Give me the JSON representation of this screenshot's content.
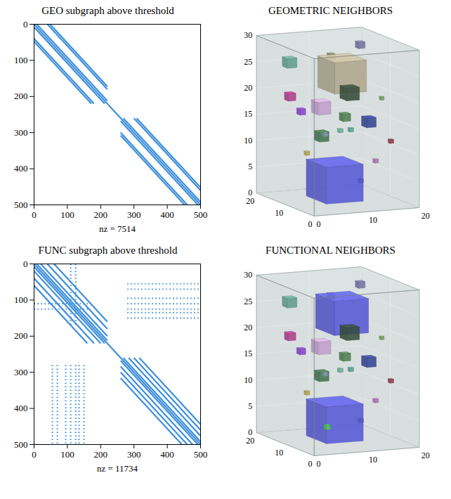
{
  "chart_data": [
    {
      "type": "spy",
      "title": "GEO subgraph above threshold",
      "x_label": "nz = 7514",
      "xlim": [
        0,
        500
      ],
      "ylim": [
        0,
        500
      ],
      "xticks": [
        0,
        100,
        200,
        300,
        400,
        500
      ],
      "yticks": [
        0,
        100,
        200,
        300,
        400,
        500
      ],
      "color": "#3d8fdc",
      "series": [
        {
          "line_style": "solid",
          "segments": [
            [
              0,
              0,
              500,
              500
            ],
            [
              8,
              0,
              220,
              212
            ],
            [
              0,
              8,
              212,
              220
            ],
            [
              40,
              0,
              220,
              180
            ],
            [
              0,
              40,
              180,
              220
            ],
            [
              48,
              0,
              220,
              172
            ],
            [
              0,
              48,
              172,
              220
            ],
            [
              268,
              260,
              500,
              492
            ],
            [
              260,
              268,
              492,
              500
            ],
            [
              300,
              260,
              500,
              460
            ],
            [
              260,
              300,
              460,
              500
            ],
            [
              308,
              260,
              500,
              452
            ],
            [
              260,
              308,
              452,
              500
            ]
          ]
        }
      ]
    },
    {
      "type": "3d",
      "title": "GEOMETRIC NEIGHBORS",
      "xlim": [
        0,
        20
      ],
      "ylim": [
        0,
        20
      ],
      "zlim": [
        0,
        30
      ],
      "xticks": [
        0,
        10,
        20
      ],
      "yticks": [
        0,
        10,
        20
      ],
      "zticks": [
        0,
        5,
        10,
        15,
        20,
        25,
        30
      ],
      "color": "#9aabab",
      "objects": [
        {
          "center": [
            17,
            15,
            28
          ],
          "size": 1.2,
          "color": "#6a6aa8"
        },
        {
          "center": [
            12,
            16,
            26
          ],
          "size": 1.0,
          "color": "#8c7a50"
        },
        {
          "center": [
            13,
            14,
            23
          ],
          "size": 6,
          "color": "#c2b290"
        },
        {
          "center": [
            3,
            14,
            26
          ],
          "size": 1.8,
          "color": "#5aa88e"
        },
        {
          "center": [
            15,
            15,
            19
          ],
          "size": 2.4,
          "color": "#1f3a22"
        },
        {
          "center": [
            2,
            12,
            20
          ],
          "size": 1.4,
          "color": "#c2248e"
        },
        {
          "center": [
            3,
            10,
            17.5
          ],
          "size": 1.1,
          "color": "#8a2be2"
        },
        {
          "center": [
            9,
            14,
            17
          ],
          "size": 2.4,
          "color": "#dba6e6"
        },
        {
          "center": [
            13,
            13,
            15
          ],
          "size": 1.4,
          "color": "#3e7f3e"
        },
        {
          "center": [
            17,
            12,
            14
          ],
          "size": 1.8,
          "color": "#1f2f9a"
        },
        {
          "center": [
            11,
            11,
            13
          ],
          "size": 0.7,
          "color": "#67c0a4"
        },
        {
          "center": [
            13,
            11,
            13
          ],
          "size": 0.7,
          "color": "#4fb0a0"
        },
        {
          "center": [
            8,
            12,
            12
          ],
          "size": 1.8,
          "color": "#2f6e3c"
        },
        {
          "center": [
            7,
            9,
            13
          ],
          "size": 0.7,
          "color": "#8aa0c8"
        },
        {
          "center": [
            3,
            8,
            10
          ],
          "size": 0.7,
          "color": "#c8b040"
        },
        {
          "center": [
            20,
            13,
            18
          ],
          "size": 0.6,
          "color": "#6ab04c"
        },
        {
          "center": [
            19,
            8,
            11
          ],
          "size": 0.7,
          "color": "#a02040"
        },
        {
          "center": [
            15,
            6,
            8
          ],
          "size": 0.7,
          "color": "#c070c0"
        },
        {
          "center": [
            11,
            4,
            5
          ],
          "size": 0.7,
          "color": "#20304a"
        },
        {
          "center": [
            5,
            2,
            6
          ],
          "size": 7,
          "color": "#4a4af0"
        }
      ]
    },
    {
      "type": "spy",
      "title": "FUNC subgraph above threshold",
      "x_label": "nz = 11734",
      "xlim": [
        0,
        500
      ],
      "ylim": [
        0,
        500
      ],
      "xticks": [
        0,
        100,
        200,
        300,
        400,
        500
      ],
      "yticks": [
        0,
        100,
        200,
        300,
        400,
        500
      ],
      "color": "#3d8fdc",
      "series": [
        {
          "line_style": "solid",
          "segments": [
            [
              0,
              0,
              500,
              500
            ],
            [
              8,
              0,
              220,
              212
            ],
            [
              0,
              8,
              212,
              220
            ],
            [
              20,
              0,
              220,
              200
            ],
            [
              0,
              20,
              200,
              220
            ],
            [
              40,
              0,
              220,
              180
            ],
            [
              0,
              40,
              180,
              220
            ],
            [
              60,
              0,
              220,
              160
            ],
            [
              0,
              60,
              160,
              220
            ],
            [
              268,
              260,
              500,
              492
            ],
            [
              260,
              268,
              492,
              500
            ],
            [
              284,
              260,
              500,
              476
            ],
            [
              260,
              284,
              476,
              500
            ],
            [
              300,
              260,
              500,
              460
            ],
            [
              260,
              300,
              460,
              500
            ],
            [
              316,
              260,
              500,
              444
            ],
            [
              260,
              316,
              444,
              500
            ]
          ]
        },
        {
          "line_style": "dotted",
          "segments": [
            [
              280,
              55,
              500,
              55
            ],
            [
              280,
              70,
              500,
              70
            ],
            [
              280,
              95,
              500,
              95
            ],
            [
              280,
              110,
              500,
              110
            ],
            [
              280,
              125,
              500,
              125
            ],
            [
              280,
              135,
              500,
              135
            ],
            [
              280,
              150,
              500,
              150
            ],
            [
              55,
              280,
              55,
              500
            ],
            [
              70,
              280,
              70,
              500
            ],
            [
              95,
              280,
              95,
              500
            ],
            [
              110,
              280,
              110,
              500
            ],
            [
              125,
              280,
              125,
              500
            ],
            [
              135,
              280,
              135,
              500
            ],
            [
              150,
              280,
              150,
              500
            ],
            [
              0,
              110,
              170,
              110
            ],
            [
              0,
              125,
              170,
              125
            ],
            [
              110,
              0,
              110,
              170
            ],
            [
              125,
              0,
              125,
              170
            ]
          ]
        }
      ]
    },
    {
      "type": "3d",
      "title": "FUNCTIONAL NEIGHBORS",
      "xlim": [
        0,
        20
      ],
      "ylim": [
        0,
        20
      ],
      "zlim": [
        0,
        30
      ],
      "xticks": [
        0,
        10,
        20
      ],
      "yticks": [
        0,
        10,
        20
      ],
      "zticks": [
        0,
        5,
        10,
        15,
        20,
        25,
        30
      ],
      "color": "#9aabab",
      "objects": [
        {
          "center": [
            17,
            15,
            28
          ],
          "size": 1.2,
          "color": "#6a6aa8"
        },
        {
          "center": [
            12,
            16,
            26
          ],
          "size": 1.0,
          "color": "#8c7a50"
        },
        {
          "center": [
            13,
            14,
            23
          ],
          "size": 6.5,
          "color": "#4a4af0"
        },
        {
          "center": [
            3,
            14,
            26
          ],
          "size": 1.8,
          "color": "#5aa88e"
        },
        {
          "center": [
            15,
            15,
            19
          ],
          "size": 2.4,
          "color": "#1f3a22"
        },
        {
          "center": [
            2,
            12,
            20
          ],
          "size": 1.4,
          "color": "#c2248e"
        },
        {
          "center": [
            3,
            10,
            17.5
          ],
          "size": 1.1,
          "color": "#8a2be2"
        },
        {
          "center": [
            9,
            14,
            17
          ],
          "size": 2.4,
          "color": "#dba6e6"
        },
        {
          "center": [
            13,
            13,
            15
          ],
          "size": 1.4,
          "color": "#3e7f3e"
        },
        {
          "center": [
            17,
            12,
            14
          ],
          "size": 1.8,
          "color": "#1f2f9a"
        },
        {
          "center": [
            11,
            11,
            13
          ],
          "size": 0.7,
          "color": "#67c0a4"
        },
        {
          "center": [
            13,
            11,
            13
          ],
          "size": 0.7,
          "color": "#4fb0a0"
        },
        {
          "center": [
            8,
            12,
            12
          ],
          "size": 1.8,
          "color": "#2f6e3c"
        },
        {
          "center": [
            7,
            9,
            13
          ],
          "size": 0.7,
          "color": "#8aa0c8"
        },
        {
          "center": [
            3,
            8,
            10
          ],
          "size": 0.7,
          "color": "#c8b040"
        },
        {
          "center": [
            20,
            13,
            18
          ],
          "size": 0.6,
          "color": "#6ab04c"
        },
        {
          "center": [
            19,
            8,
            11
          ],
          "size": 0.7,
          "color": "#a02040"
        },
        {
          "center": [
            15,
            6,
            8
          ],
          "size": 0.7,
          "color": "#c070c0"
        },
        {
          "center": [
            11,
            4,
            5
          ],
          "size": 0.7,
          "color": "#20304a"
        },
        {
          "center": [
            5,
            2,
            6
          ],
          "size": 7,
          "color": "#4a4af0"
        },
        {
          "center": [
            3,
            1,
            5
          ],
          "size": 0.8,
          "color": "#40e040"
        }
      ]
    }
  ]
}
